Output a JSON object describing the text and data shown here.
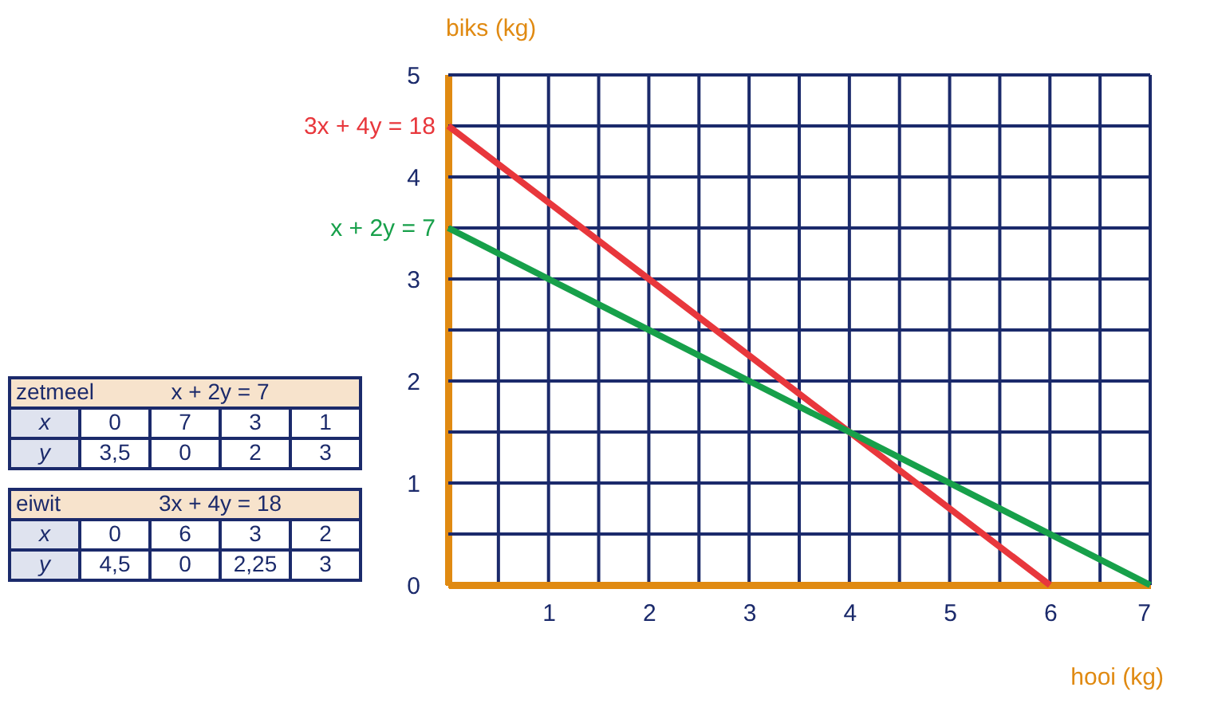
{
  "chart_data": [
    {
      "type": "line",
      "xlabel": "hooi (kg)",
      "ylabel": "biks (kg)",
      "series": [
        {
          "name": "3x + 4y = 18",
          "color": "#e8373c",
          "x": [
            0,
            6,
            3,
            2
          ],
          "values": [
            4.5,
            0,
            2.25,
            3
          ]
        },
        {
          "name": "x + 2y = 7",
          "color": "#17a04a",
          "x": [
            0,
            7,
            3,
            1
          ],
          "values": [
            3.5,
            0,
            2,
            3
          ]
        }
      ],
      "xlim": [
        0,
        7
      ],
      "ylim": [
        0,
        5
      ],
      "xticks": [
        {
          "value": 0,
          "label": null
        },
        {
          "value": 0.5,
          "label": null
        },
        1,
        {
          "value": 1.5,
          "label": null
        },
        2,
        {
          "value": 2.5,
          "label": null
        },
        3,
        {
          "value": 3.5,
          "label": null
        },
        4,
        {
          "value": 4.5,
          "label": null
        },
        5,
        {
          "value": 5.5,
          "label": null
        },
        6,
        {
          "value": 6.5,
          "label": null
        },
        7
      ],
      "yticks": [
        0,
        {
          "value": 0.5,
          "label": null
        },
        1,
        {
          "value": 1.5,
          "label": null
        },
        2,
        {
          "value": 2.5,
          "label": null
        },
        3,
        {
          "value": 3.5,
          "label": null
        },
        4,
        {
          "value": 4.5,
          "label": null
        },
        5
      ],
      "grid": true,
      "marker": "none",
      "line_style": "solid"
    },
    {
      "type": "other",
      "title": "zetmeel",
      "subtitle": "x + 2y = 7",
      "categories": [
        null,
        null,
        null,
        null
      ],
      "y_categories": [
        "x",
        "y"
      ],
      "cell_labels": [
        [
          "0",
          "7",
          "3",
          "1"
        ],
        [
          "3,5",
          "0",
          "2",
          "3"
        ]
      ]
    },
    {
      "type": "other",
      "title": "eiwit",
      "subtitle": "3x + 4y = 18",
      "categories": [
        null,
        null,
        null,
        null
      ],
      "y_categories": [
        "x",
        "y"
      ],
      "cell_labels": [
        [
          "0",
          "6",
          "3",
          "2"
        ],
        [
          "4,5",
          "0",
          "2,25",
          "3"
        ]
      ]
    }
  ]
}
